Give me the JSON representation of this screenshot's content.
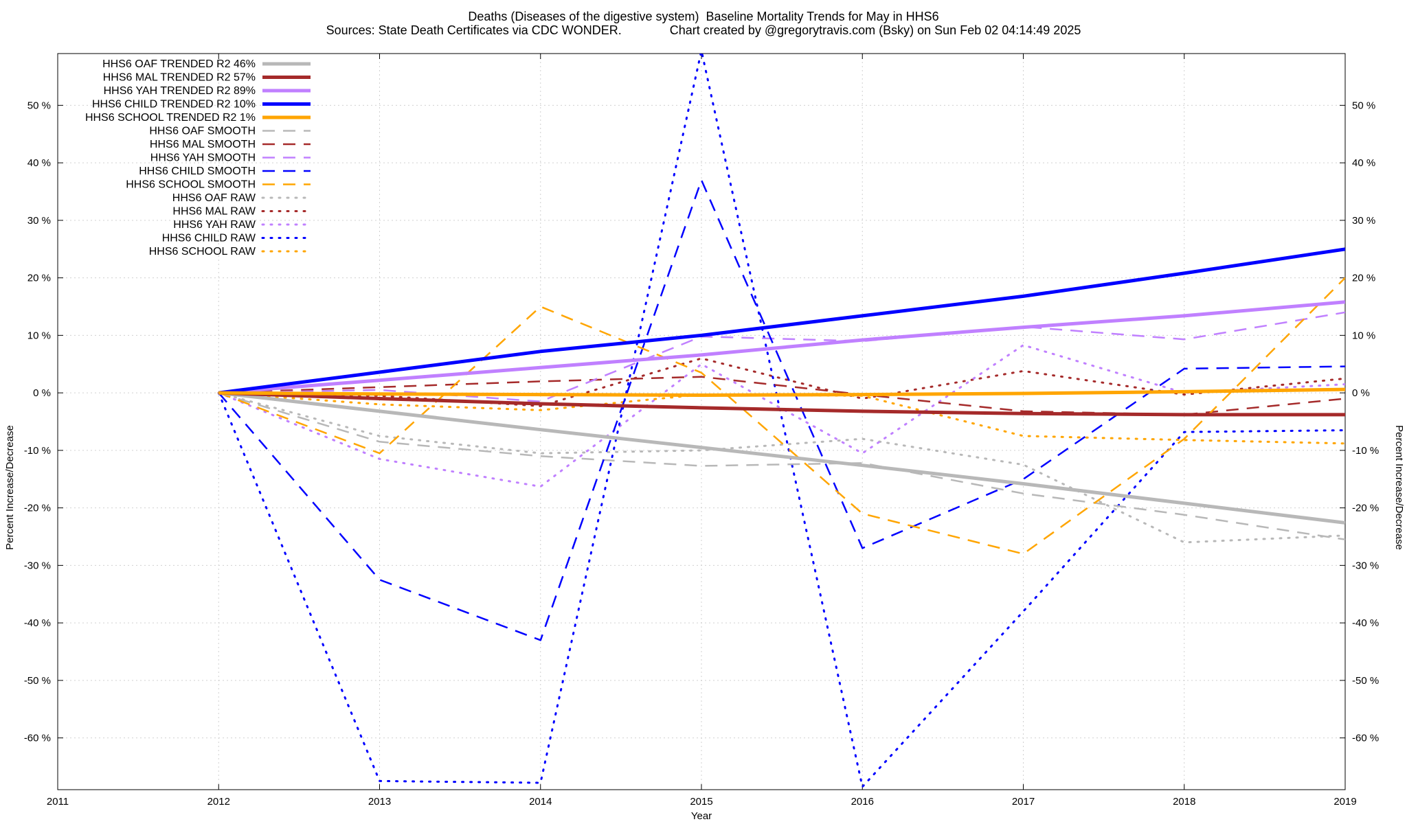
{
  "chart_data": {
    "type": "line",
    "title": "Deaths (Diseases of the digestive system)  Baseline Mortality Trends for May in HHS6",
    "subtitle": "Sources: State Death Certificates via CDC WONDER.              Chart created by @gregorytravis.com (Bsky) on Sun Feb 02 04:14:49 2025",
    "xlabel": "Year",
    "ylabel": "Percent Increase/Decrease",
    "y2label": "Percent Increase/Decrease",
    "xlim": [
      2011,
      2019
    ],
    "ylim": [
      -69,
      59
    ],
    "x_ticks": [
      2011,
      2012,
      2013,
      2014,
      2015,
      2016,
      2017,
      2018,
      2019
    ],
    "x_tick_labels": [
      "2011",
      "2012",
      "2013",
      "2014",
      "2015",
      "2016",
      "2017",
      "2018",
      "2019"
    ],
    "y_ticks": [
      50,
      40,
      30,
      20,
      10,
      0,
      -10,
      -20,
      -30,
      -40,
      -50,
      -60
    ],
    "y_tick_labels": [
      "50 %",
      "40 %",
      "30 %",
      "20 %",
      "10 %",
      "0 %",
      "-10 %",
      "-20 %",
      "-30 %",
      "-40 %",
      "-50 %",
      "-60 %"
    ],
    "grid": true,
    "legend_position": "top-left",
    "x": [
      2012,
      2013,
      2014,
      2015,
      2016,
      2017,
      2018,
      2019
    ],
    "series": [
      {
        "name": "HHS6 OAF TRENDED R2  46%",
        "style": "trend",
        "color": "#b8b8b8",
        "values": [
          0,
          -3.2,
          -6.4,
          -9.5,
          -12.6,
          -15.8,
          -19.2,
          -22.6
        ]
      },
      {
        "name": "HHS6 MAL TRENDED R2  57%",
        "style": "trend",
        "color": "#a52a2a",
        "values": [
          0,
          -1.0,
          -1.9,
          -2.6,
          -3.2,
          -3.6,
          -3.8,
          -3.8
        ]
      },
      {
        "name": "HHS6 YAH TRENDED R2  89%",
        "style": "trend",
        "color": "#c080ff",
        "values": [
          0,
          2.2,
          4.4,
          6.6,
          9.2,
          11.4,
          13.4,
          15.8
        ]
      },
      {
        "name": "HHS6 CHILD TRENDED R2  10%",
        "style": "trend",
        "color": "#0000ff",
        "values": [
          0,
          3.6,
          7.2,
          10.0,
          13.4,
          16.8,
          20.8,
          25.0
        ]
      },
      {
        "name": "HHS6 SCHOOL TRENDED R2   1%",
        "style": "trend",
        "color": "#ffa500",
        "values": [
          0,
          -0.2,
          -0.3,
          -0.4,
          -0.3,
          -0.1,
          0.2,
          0.6
        ]
      },
      {
        "name": "HHS6 OAF SMOOTH",
        "style": "smooth",
        "color": "#b8b8b8",
        "values": [
          0,
          -8.5,
          -11.0,
          -12.7,
          -12.2,
          -17.5,
          -21.2,
          -25.5
        ]
      },
      {
        "name": "HHS6 MAL SMOOTH",
        "style": "smooth",
        "color": "#a52a2a",
        "values": [
          0,
          1.0,
          2.0,
          2.8,
          -0.3,
          -3.2,
          -3.8,
          -1.0
        ]
      },
      {
        "name": "HHS6 YAH SMOOTH",
        "style": "smooth",
        "color": "#c080ff",
        "values": [
          0,
          0.5,
          -1.5,
          9.8,
          9.0,
          11.5,
          9.3,
          14.0
        ]
      },
      {
        "name": "HHS6 CHILD SMOOTH",
        "style": "smooth",
        "color": "#0000ff",
        "values": [
          0,
          -32.5,
          -43.0,
          37.0,
          -27.0,
          -15.0,
          4.2,
          4.6
        ]
      },
      {
        "name": "HHS6 SCHOOL SMOOTH",
        "style": "smooth",
        "color": "#ffa500",
        "values": [
          0,
          -10.5,
          15.0,
          3.5,
          -21.0,
          -28.0,
          -8.0,
          20.0
        ]
      },
      {
        "name": "HHS6 OAF RAW",
        "style": "raw",
        "color": "#b8b8b8",
        "values": [
          0,
          -7.5,
          -10.5,
          -10.0,
          -8.0,
          -12.5,
          -26.0,
          -24.8
        ]
      },
      {
        "name": "HHS6 MAL RAW",
        "style": "raw",
        "color": "#a52a2a",
        "values": [
          0,
          -0.5,
          -2.3,
          6.0,
          -1.0,
          3.8,
          -0.3,
          2.5
        ]
      },
      {
        "name": "HHS6 YAH RAW",
        "style": "raw",
        "color": "#c080ff",
        "values": [
          0,
          -11.5,
          -16.3,
          5.0,
          -10.5,
          8.3,
          0.0,
          1.5
        ]
      },
      {
        "name": "HHS6 CHILD RAW",
        "style": "raw",
        "color": "#0000ff",
        "values": [
          0,
          -67.5,
          -67.8,
          59.5,
          -68.5,
          -38.0,
          -6.8,
          -6.5
        ]
      },
      {
        "name": "HHS6 SCHOOL RAW",
        "style": "raw",
        "color": "#ffa500",
        "values": [
          0,
          -2.0,
          -3.0,
          -0.3,
          -0.5,
          -7.5,
          -8.2,
          -8.8
        ]
      }
    ]
  }
}
